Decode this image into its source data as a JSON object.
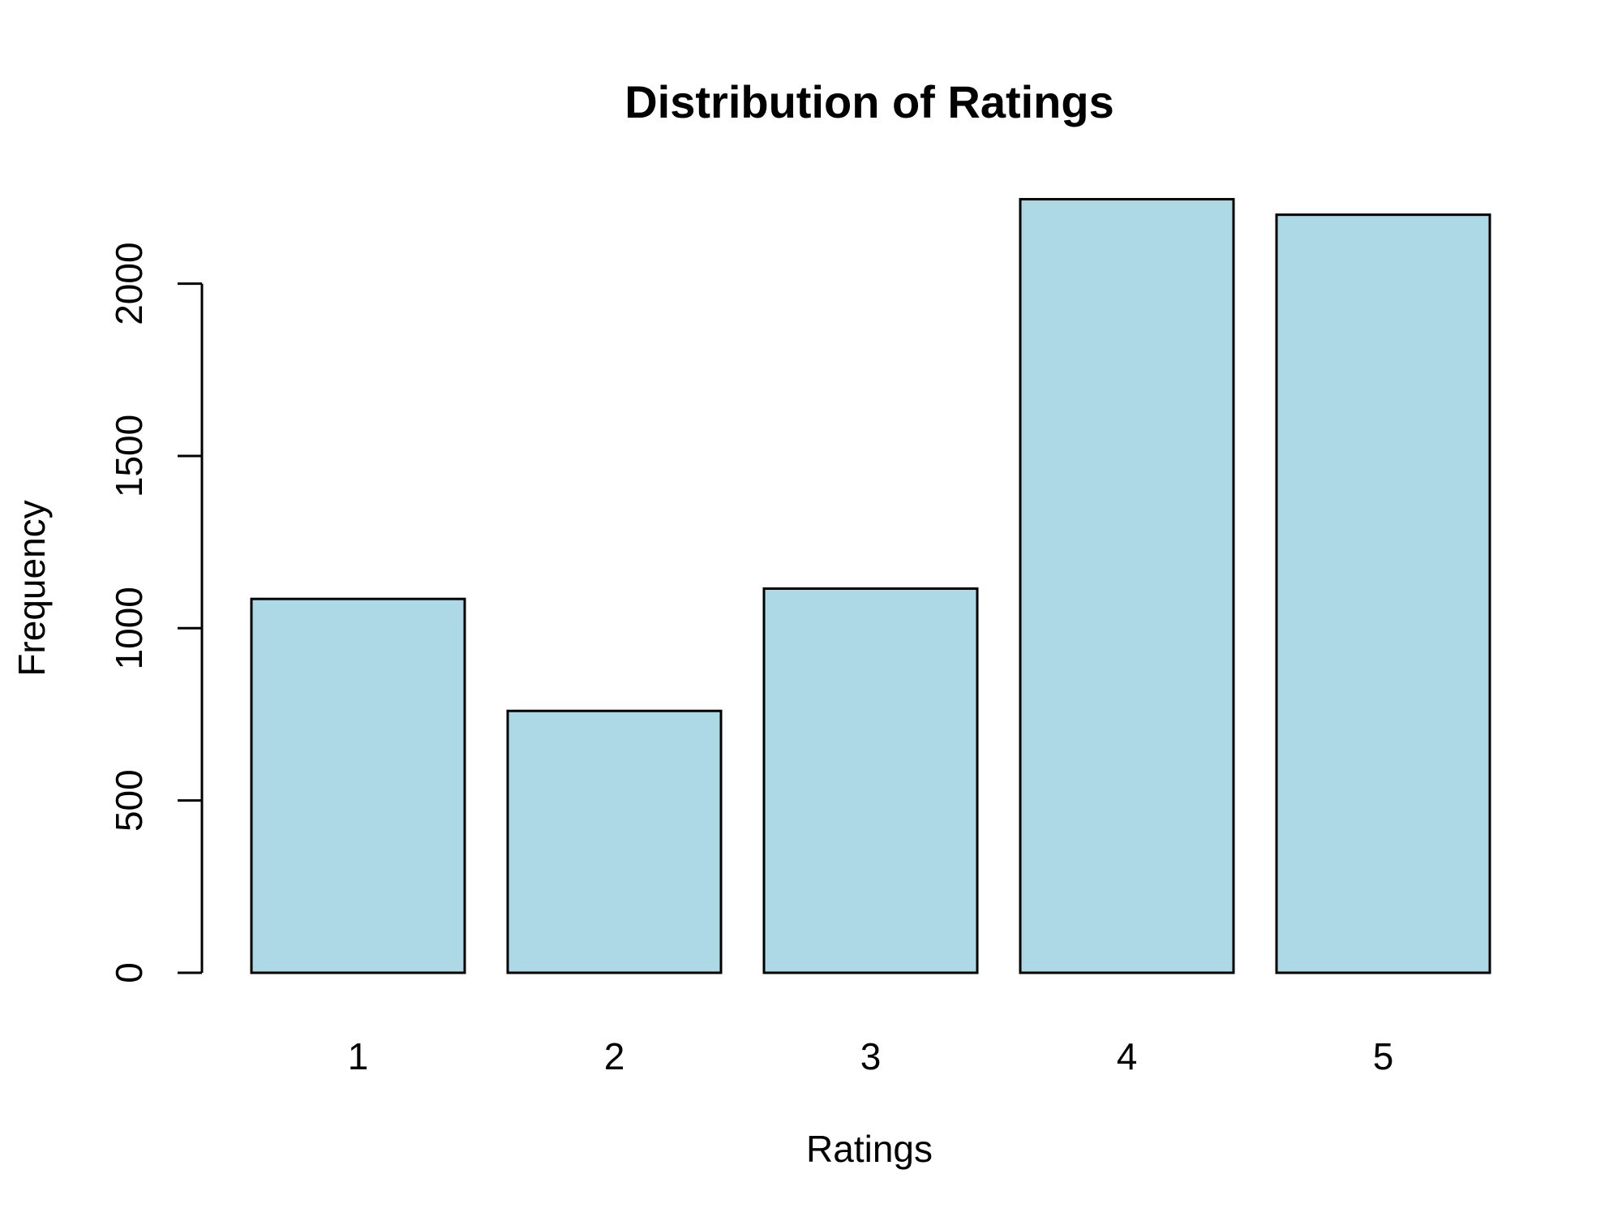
{
  "chart_data": {
    "type": "bar",
    "title": "Distribution of Ratings",
    "xlabel": "Ratings",
    "ylabel": "Frequency",
    "categories": [
      "1",
      "2",
      "3",
      "4",
      "5"
    ],
    "values": [
      1085,
      760,
      1115,
      2245,
      2200
    ],
    "ylim": [
      0,
      2245
    ],
    "yticks": [
      0,
      500,
      1000,
      1500,
      2000
    ],
    "bar_color": "#ADD8E6",
    "grid": false,
    "legend": "none"
  }
}
